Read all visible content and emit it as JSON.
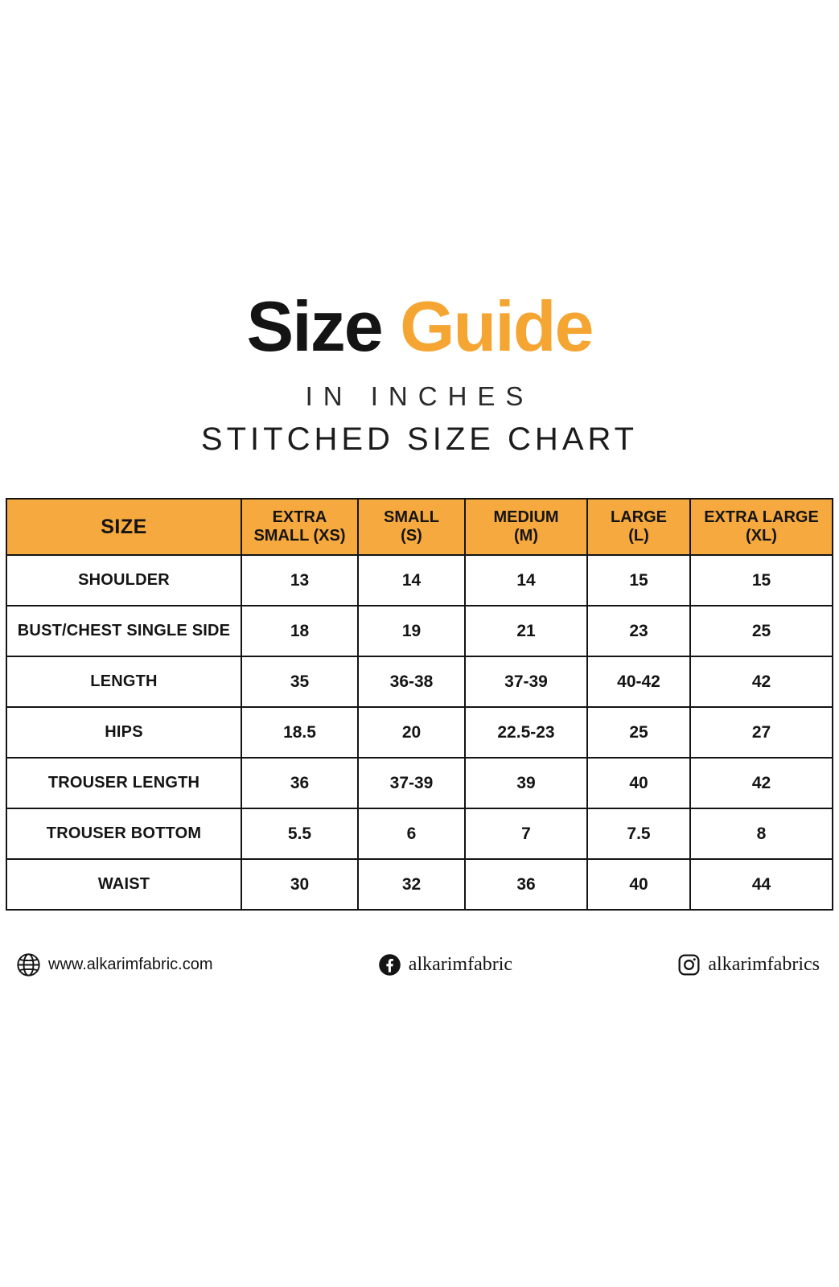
{
  "page": {
    "title_black": "Size",
    "title_orange": "Guide",
    "subtitle": "IN INCHES",
    "subtitle2": "STITCHED SIZE CHART"
  },
  "colors": {
    "accent_orange": "#F5A532",
    "header_bg": "#F6A93F",
    "text_black": "#141414",
    "table_border": "#141414",
    "background": "#FFFFFF"
  },
  "chart_data": {
    "type": "table",
    "title": "Size Guide — Stitched Size Chart (in inches)",
    "columns": [
      "SIZE",
      "EXTRA\nSMALL (XS)",
      "SMALL\n(S)",
      "MEDIUM\n(M)",
      "LARGE\n(L)",
      "EXTRA LARGE\n(XL)"
    ],
    "rows": [
      {
        "label": "SHOULDER",
        "values": [
          "13",
          "14",
          "14",
          "15",
          "15"
        ]
      },
      {
        "label": "BUST/CHEST SINGLE SIDE",
        "values": [
          "18",
          "19",
          "21",
          "23",
          "25"
        ]
      },
      {
        "label": "LENGTH",
        "values": [
          "35",
          "36-38",
          "37-39",
          "40-42",
          "42"
        ]
      },
      {
        "label": "HIPS",
        "values": [
          "18.5",
          "20",
          "22.5-23",
          "25",
          "27"
        ]
      },
      {
        "label": "TROUSER LENGTH",
        "values": [
          "36",
          "37-39",
          "39",
          "40",
          "42"
        ]
      },
      {
        "label": "TROUSER BOTTOM",
        "values": [
          "5.5",
          "6",
          "7",
          "7.5",
          "8"
        ]
      },
      {
        "label": "WAIST",
        "values": [
          "30",
          "32",
          "36",
          "40",
          "44"
        ]
      }
    ]
  },
  "footer": {
    "website": {
      "icon": "globe-icon",
      "label": "www.alkarimfabric.com"
    },
    "facebook": {
      "icon": "facebook-icon",
      "label": "alkarimfabric"
    },
    "instagram": {
      "icon": "instagram-icon",
      "label": "alkarimfabrics"
    }
  }
}
